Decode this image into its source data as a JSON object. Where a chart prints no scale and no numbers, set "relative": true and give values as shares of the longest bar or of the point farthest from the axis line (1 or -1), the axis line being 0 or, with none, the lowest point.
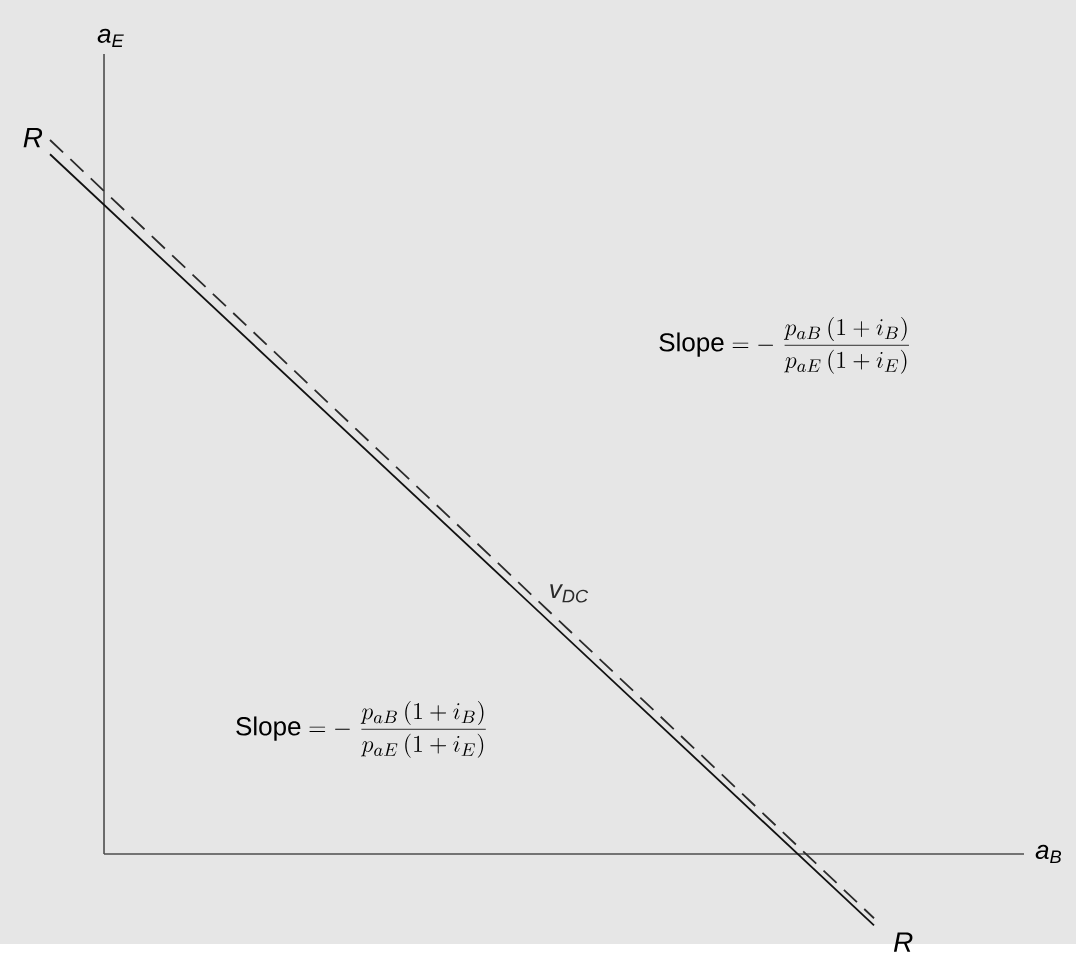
{
  "chart_data": {
    "type": "line",
    "relative": true,
    "xlabel": "a$_{B}$",
    "ylabel": "a$_{E}$",
    "categories": [
      null,
      null
    ],
    "series": [
      {
        "name": "R",
        "color": "#111111",
        "values": [
          0.98,
          -0.1
        ],
        "line_style": "solid"
      },
      {
        "name": "v$_{DC}$",
        "color": "#2b2b2b",
        "values": [
          1.0,
          -0.09
        ],
        "line_style": "dashed"
      }
    ],
    "annotations": [
      "\\mathrm{Slope} = -\\ \\frac{p_{aB}\\,(1+i_{B})}{p_{aE}\\,(1+i_{E})}",
      "\\mathrm{Slope} = -\\ \\frac{p_{aB}\\,(1+i_{B})}{p_{aE}\\,(1+i_{E})}"
    ]
  }
}
